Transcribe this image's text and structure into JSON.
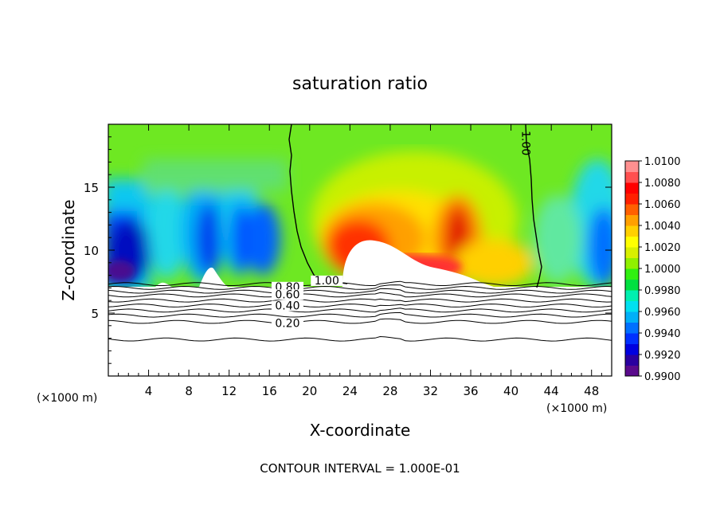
{
  "chart_data": {
    "type": "heatmap",
    "title": "saturation ratio",
    "xlabel": "X-coordinate",
    "ylabel": "Z-coordinate",
    "x_unit": "(×1000 m)",
    "x_unit_right": "(×1000 m)",
    "xlim": [
      0,
      50
    ],
    "ylim": [
      0,
      20
    ],
    "x_ticks": [
      4,
      8,
      12,
      16,
      20,
      24,
      28,
      32,
      36,
      40,
      44,
      48
    ],
    "y_ticks": [
      5,
      10,
      15
    ],
    "footer": "CONTOUR INTERVAL = 1.000E-01",
    "colorbar": {
      "min": 0.99,
      "max": 1.01,
      "labels": [
        "1.0100",
        "1.0080",
        "1.0060",
        "1.0040",
        "1.0020",
        "1.0000",
        "0.9980",
        "0.9960",
        "0.9940",
        "0.9920",
        "0.9900"
      ],
      "colors": [
        "#5a0a8c",
        "#2a00a0",
        "#0000e0",
        "#0030ff",
        "#0070ff",
        "#00b0f8",
        "#00e0f0",
        "#00f0b0",
        "#00e040",
        "#30f010",
        "#90f000",
        "#d8f000",
        "#ffff00",
        "#ffd000",
        "#ffa000",
        "#ff6000",
        "#ff2000",
        "#ff0000",
        "#ff5050",
        "#ff9090"
      ]
    },
    "contour_labels": [
      {
        "text": "1.00",
        "x": 21.7,
        "y": 7.6
      },
      {
        "text": "1.00",
        "x": 41.5,
        "y": 18.5
      },
      {
        "text": "0.80",
        "x": 17.8,
        "y": 7.1
      },
      {
        "text": "0.60",
        "x": 17.8,
        "y": 6.5
      },
      {
        "text": "0.40",
        "x": 17.8,
        "y": 5.6
      },
      {
        "text": "0.20",
        "x": 17.8,
        "y": 4.2
      }
    ],
    "contour_values": [
      0.1,
      0.2,
      0.3,
      0.4,
      0.5,
      0.6,
      0.7,
      0.8,
      0.9,
      1.0
    ]
  }
}
